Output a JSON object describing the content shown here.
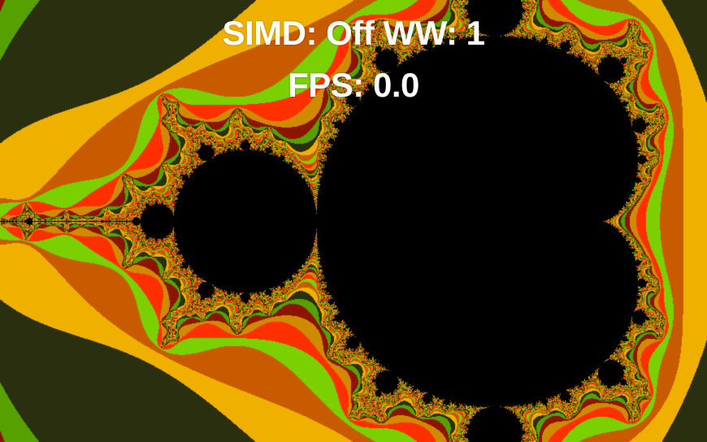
{
  "overlay": {
    "simd_label": "SIMD:",
    "simd_value": "Off",
    "ww_label": "WW:",
    "ww_value": "1",
    "fps_label": "FPS:",
    "fps_value": "0.0"
  },
  "palette": {
    "interior": "#000000",
    "bands": [
      "#d08a00",
      "#8c1400",
      "#56a000",
      "#2a2f10",
      "#f0b000",
      "#c85a00",
      "#7ad000",
      "#ff3000"
    ]
  }
}
